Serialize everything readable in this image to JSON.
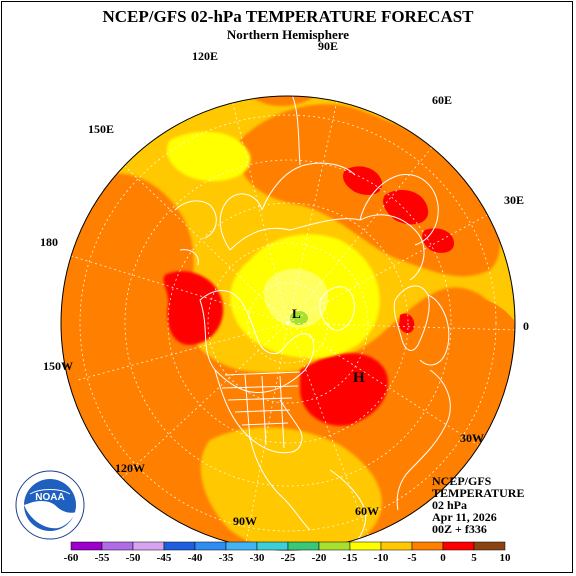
{
  "title": "NCEP/GFS 02-hPa TEMPERATURE FORECAST",
  "subtitle": "Northern Hemisphere",
  "longitude_labels": [
    "90E",
    "60E",
    "30E",
    "0",
    "30W",
    "60W",
    "90W",
    "120W",
    "150W",
    "180",
    "150E",
    "120E"
  ],
  "pressure_centers": [
    {
      "symbol": "L",
      "kind": "low"
    },
    {
      "symbol": "H",
      "kind": "high"
    }
  ],
  "info": {
    "line1": "NCEP/GFS",
    "line2": "TEMPERATURE",
    "line3": "02 hPa",
    "line4": "Apr 11, 2026",
    "line5": "00Z + f336"
  },
  "logo_text": "NOAA",
  "legend": {
    "ticks": [
      "-60",
      "-55",
      "-50",
      "-45",
      "-40",
      "-35",
      "-30",
      "-25",
      "-20",
      "-15",
      "-10",
      "-5",
      "0",
      "5",
      "10"
    ],
    "colors": [
      "#9b00cc",
      "#b06be6",
      "#d6a3f0",
      "#1e5fe0",
      "#2f8cf0",
      "#40b4f5",
      "#3ccfd8",
      "#38c878",
      "#a8e030",
      "#ffff00",
      "#ffc800",
      "#ff8000",
      "#ff0000",
      "#8b4513",
      "#808080"
    ]
  },
  "colors": {
    "ocean_bg": "#ffc800",
    "warm": "#ff8000",
    "hot": "#ff0000",
    "cool": "#ffff00",
    "coldest": "#a8e030",
    "coast": "#ffffff"
  }
}
